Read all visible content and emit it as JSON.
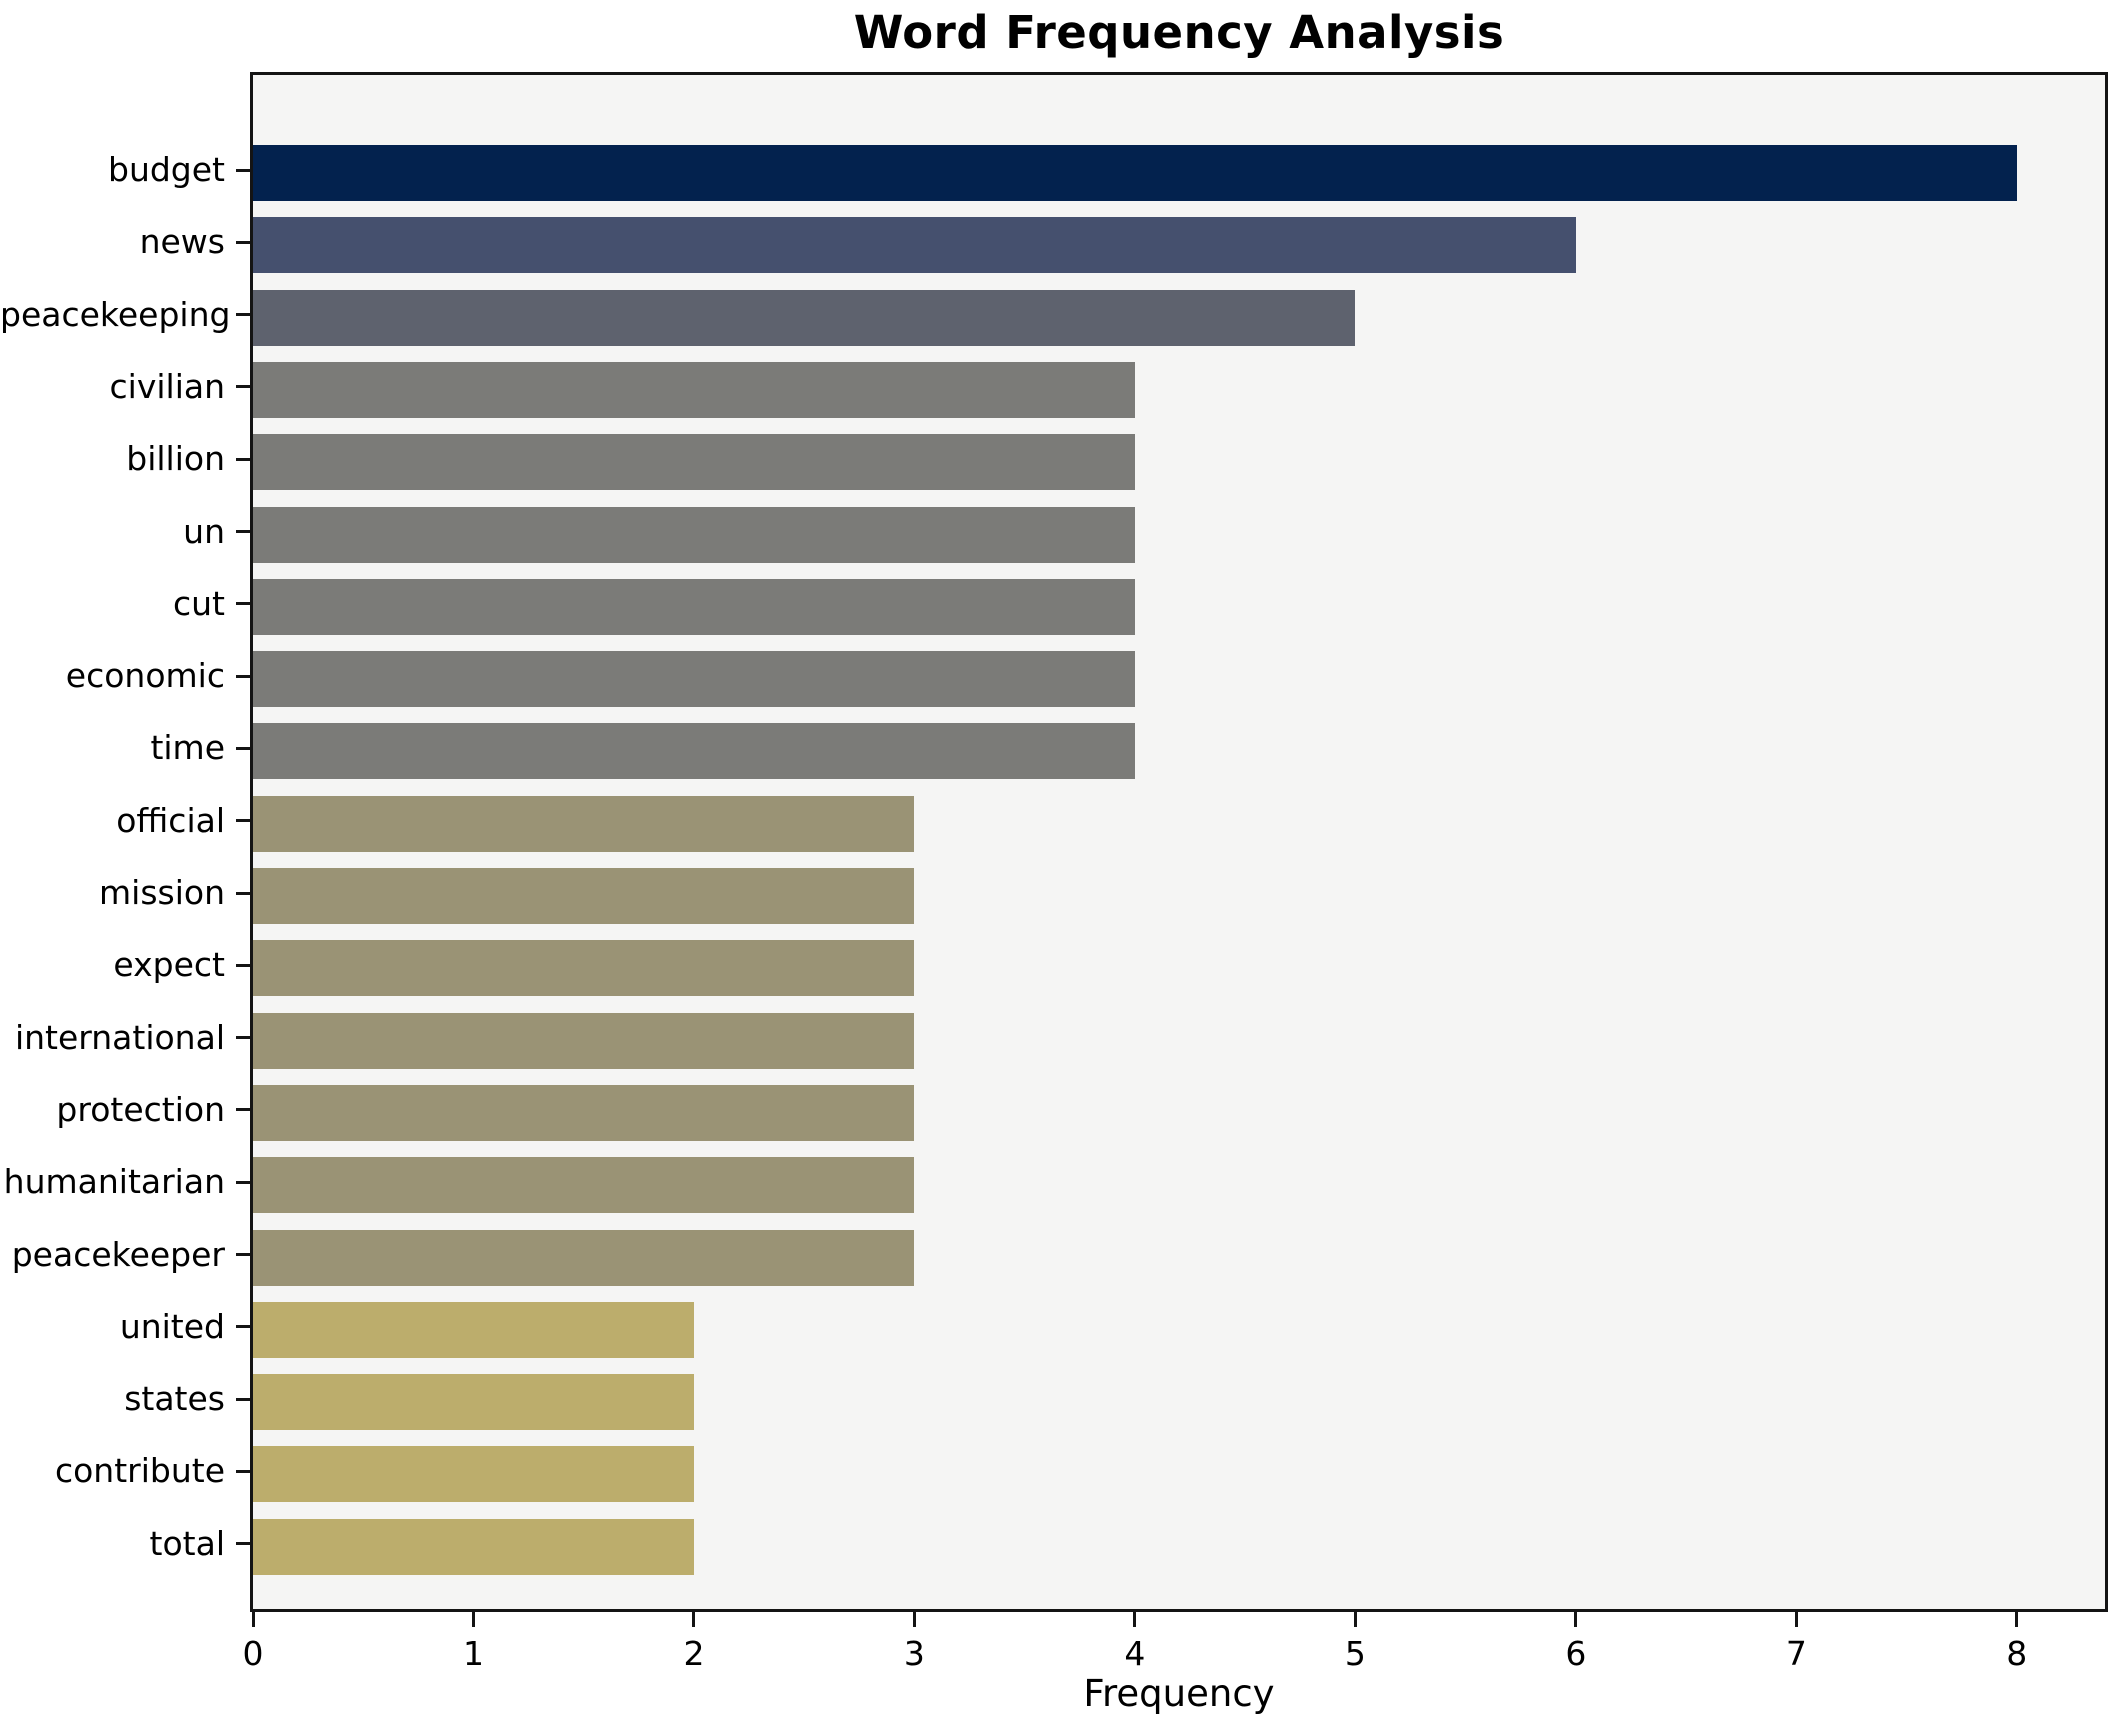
{
  "chart_data": {
    "type": "bar",
    "orientation": "horizontal",
    "title": "Word Frequency Analysis",
    "xlabel": "Frequency",
    "ylabel": "",
    "categories": [
      "budget",
      "news",
      "peacekeeping",
      "civilian",
      "billion",
      "un",
      "cut",
      "economic",
      "time",
      "official",
      "mission",
      "expect",
      "international",
      "protection",
      "humanitarian",
      "peacekeeper",
      "united",
      "states",
      "contribute",
      "total"
    ],
    "values": [
      8,
      6,
      5,
      4,
      4,
      4,
      4,
      4,
      4,
      3,
      3,
      3,
      3,
      3,
      3,
      3,
      2,
      2,
      2,
      2
    ],
    "bar_colors": [
      "#03224e",
      "#45506e",
      "#5e626e",
      "#7b7b78",
      "#7b7b78",
      "#7b7b78",
      "#7b7b78",
      "#7b7b78",
      "#7b7b78",
      "#9a9375",
      "#9a9375",
      "#9a9375",
      "#9a9375",
      "#9a9375",
      "#9a9375",
      "#9a9375",
      "#bcad6c",
      "#bcad6c",
      "#bcad6c",
      "#bcad6c"
    ],
    "xticks": [
      0,
      1,
      2,
      3,
      4,
      5,
      6,
      7,
      8
    ],
    "xlim": [
      0,
      8.4
    ],
    "grid": false,
    "legend": false,
    "plot_background": "#f5f5f4",
    "figure_background": "#ffffff",
    "spine_color": "#141414",
    "text_color": "#000000"
  }
}
